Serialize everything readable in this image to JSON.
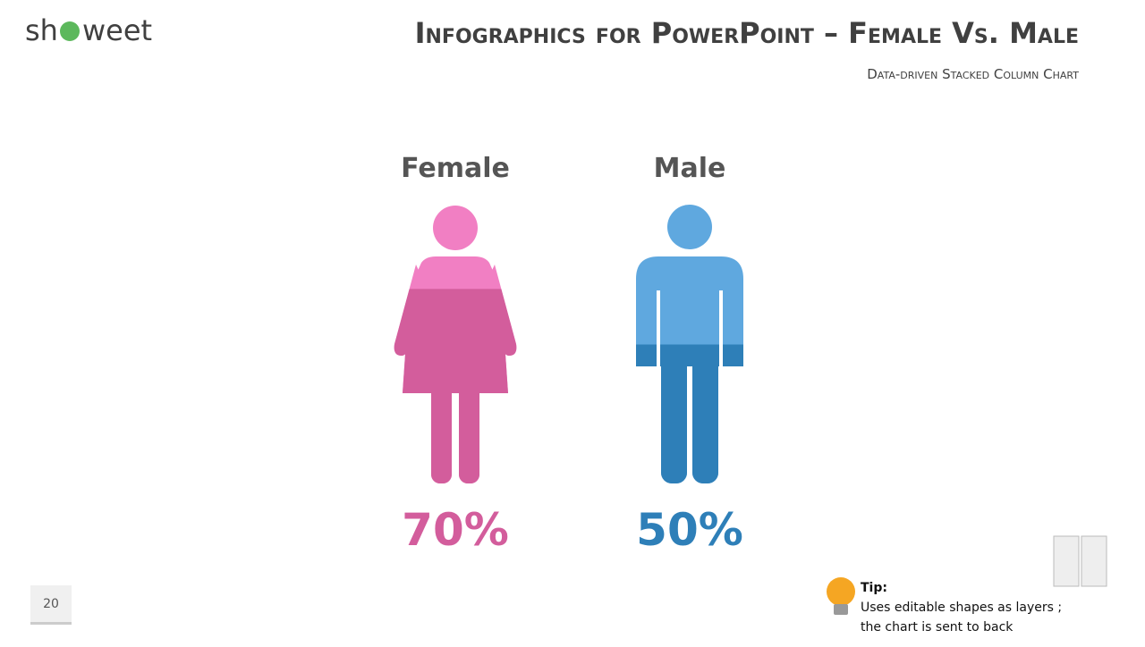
{
  "logo": {
    "left": "sh",
    "right": "weet"
  },
  "chart_data": {
    "type": "pictogram",
    "title": "Infographics for PowerPoint – Female Vs. Male",
    "subtitle": "Data-driven Stacked Column Chart",
    "categories": [
      "Female",
      "Male"
    ],
    "values": [
      70,
      50
    ],
    "value_labels": [
      "70%",
      "50%"
    ],
    "colors": [
      "#d35d9c",
      "#2e7fb8"
    ],
    "light_colors": [
      "#f17fc3",
      "#5fa8df"
    ],
    "ylim": [
      0,
      100
    ]
  },
  "page_number": "20",
  "tip": {
    "label": "Tip:",
    "lines": [
      "Uses editable shapes as layers ;",
      "the chart is sent to back"
    ]
  }
}
